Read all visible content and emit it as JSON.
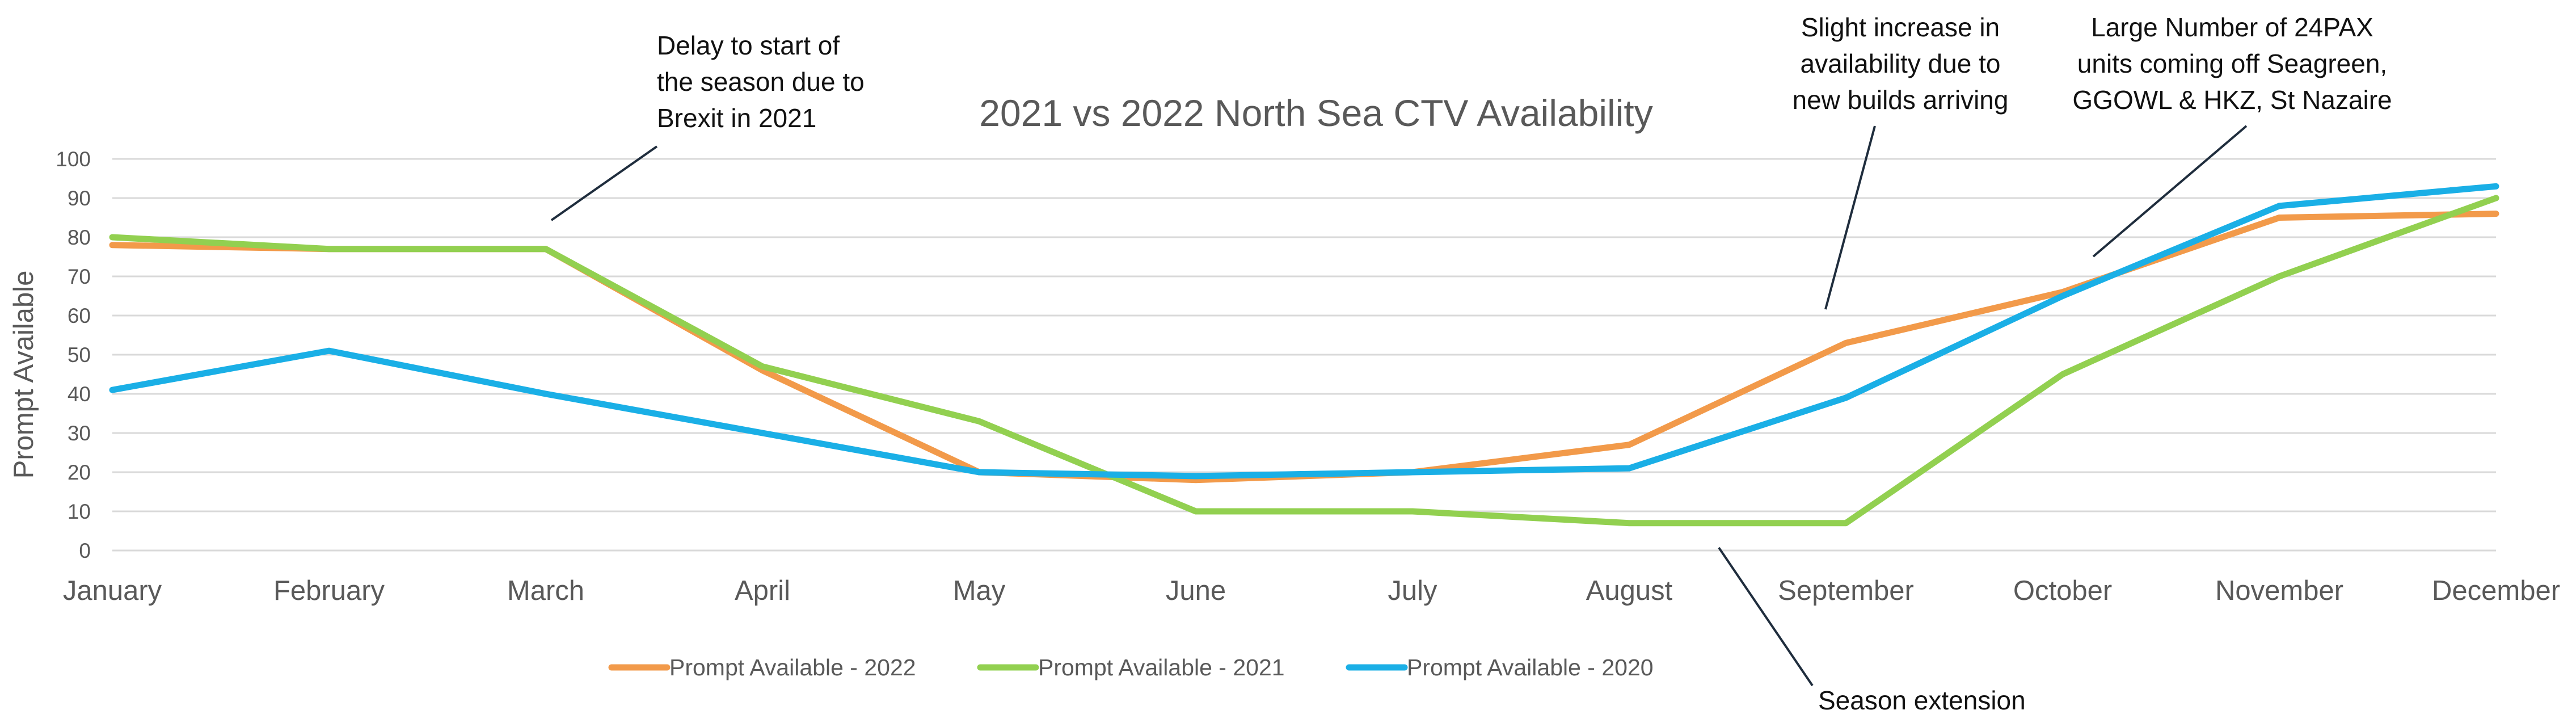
{
  "chart_data": {
    "type": "line",
    "title": "2021 vs 2022 North Sea CTV Availability",
    "xlabel": "",
    "ylabel": "Prompt Available",
    "ylim": [
      0,
      100
    ],
    "yticks": [
      0,
      10,
      20,
      30,
      40,
      50,
      60,
      70,
      80,
      90,
      100
    ],
    "grid": true,
    "legend_position": "bottom",
    "categories": [
      "January",
      "February",
      "March",
      "April",
      "May",
      "June",
      "July",
      "August",
      "September",
      "October",
      "November",
      "December"
    ],
    "series": [
      {
        "name": "Prompt Available - 2022",
        "color": "#F29A4A",
        "values": [
          78,
          77,
          77,
          46,
          20,
          18,
          20,
          27,
          53,
          66,
          85,
          86
        ]
      },
      {
        "name": "Prompt Available - 2021",
        "color": "#92D050",
        "values": [
          80,
          77,
          77,
          47,
          33,
          10,
          10,
          7,
          7,
          45,
          70,
          90
        ]
      },
      {
        "name": "Prompt Available - 2020",
        "color": "#1AAFE6",
        "values": [
          41,
          51,
          40,
          30,
          20,
          19,
          20,
          21,
          39,
          65,
          88,
          93
        ]
      }
    ],
    "annotations": [
      {
        "lines": [
          "Delay to start of",
          "the season due to",
          "Brexit in 2021"
        ]
      },
      {
        "lines": [
          "Slight increase in",
          "availability due to",
          "new builds arriving"
        ]
      },
      {
        "lines": [
          "Large Number of 24PAX",
          "units coming off Seagreen,",
          "GGOWL & HKZ, St Nazaire"
        ]
      },
      {
        "lines": [
          "Season extension"
        ]
      }
    ]
  }
}
